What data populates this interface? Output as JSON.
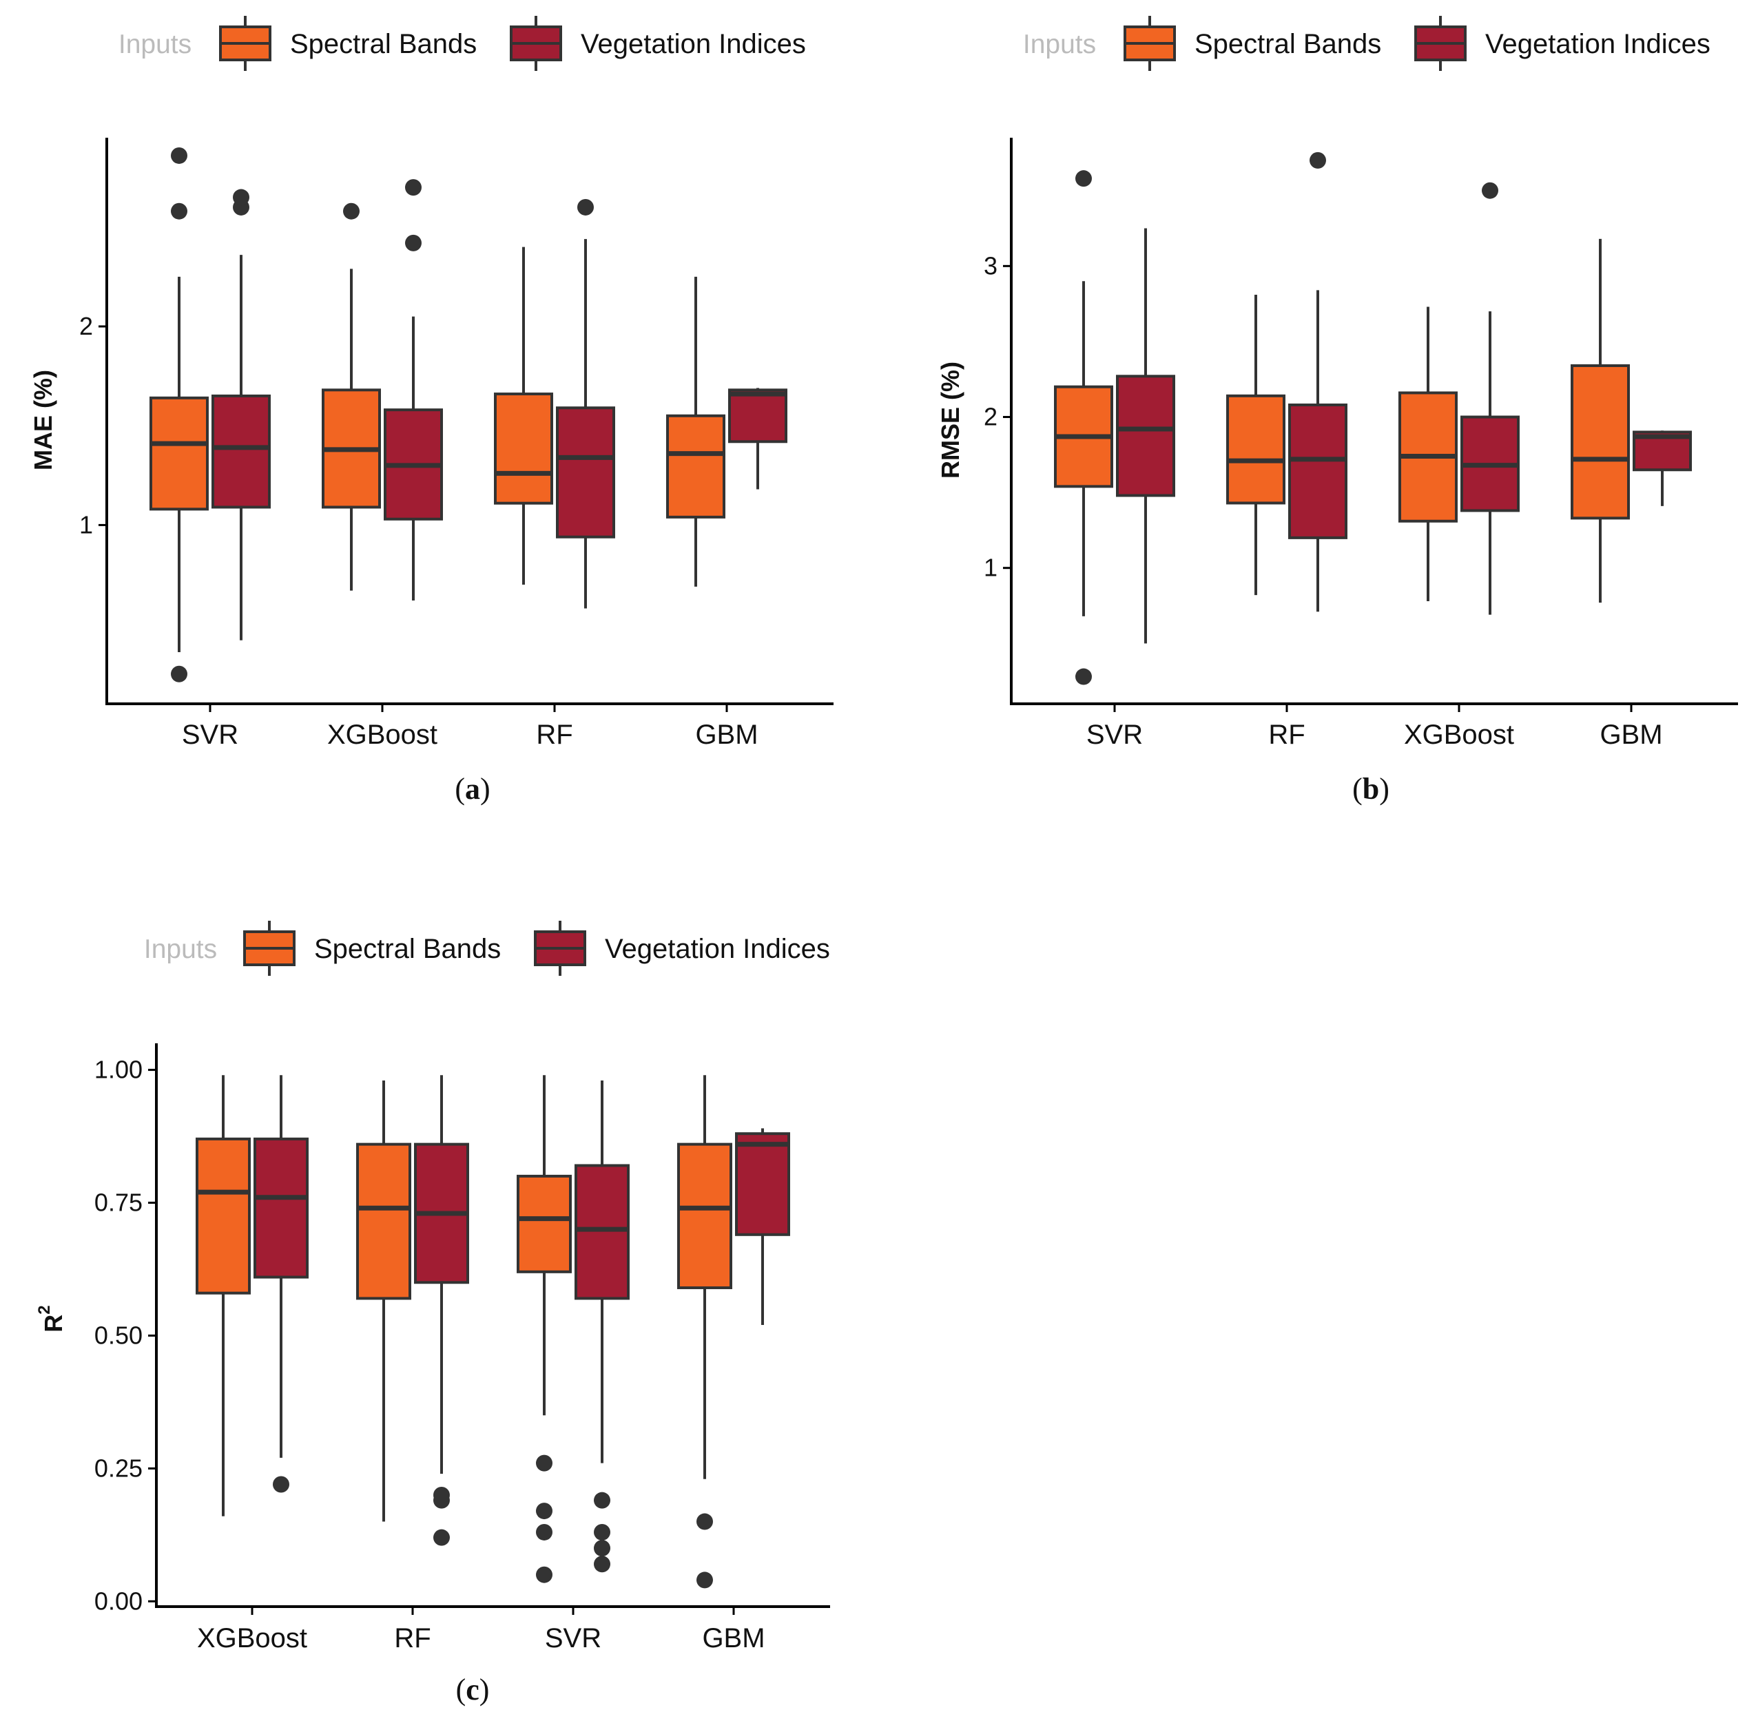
{
  "colors": {
    "spectral": "#F26522",
    "vegetation": "#A11D33",
    "outline": "#333333",
    "axis": "#000000",
    "legend_title": "#BBBBBB",
    "text": "#111111"
  },
  "chart_data": [
    {
      "type": "boxplot",
      "id": "a",
      "caption_label": "a",
      "ylabel": "MAE (%)",
      "ylim": [
        0.1,
        2.95
      ],
      "yticks": [
        1,
        2
      ],
      "ytick_labels": [
        "1",
        "2"
      ],
      "legend": {
        "title": "Inputs",
        "entries": [
          "Spectral Bands",
          "Vegetation Indices"
        ]
      },
      "categories": [
        "SVR",
        "XGBoost",
        "RF",
        "GBM"
      ],
      "series": [
        {
          "name": "Spectral Bands",
          "boxes": [
            {
              "min": 0.36,
              "q1": 1.08,
              "median": 1.41,
              "q3": 1.64,
              "max": 2.25,
              "outliers": [
                0.25,
                2.58,
                2.86
              ]
            },
            {
              "min": 0.67,
              "q1": 1.09,
              "median": 1.38,
              "q3": 1.68,
              "max": 2.29,
              "outliers": [
                2.58
              ]
            },
            {
              "min": 0.7,
              "q1": 1.11,
              "median": 1.26,
              "q3": 1.66,
              "max": 2.4,
              "outliers": []
            },
            {
              "min": 0.69,
              "q1": 1.04,
              "median": 1.36,
              "q3": 1.55,
              "max": 2.25,
              "outliers": []
            }
          ]
        },
        {
          "name": "Vegetation Indices",
          "boxes": [
            {
              "min": 0.42,
              "q1": 1.09,
              "median": 1.39,
              "q3": 1.65,
              "max": 2.36,
              "outliers": [
                2.6,
                2.65
              ]
            },
            {
              "min": 0.62,
              "q1": 1.03,
              "median": 1.3,
              "q3": 1.58,
              "max": 2.05,
              "outliers": [
                2.42,
                2.7
              ]
            },
            {
              "min": 0.58,
              "q1": 0.94,
              "median": 1.34,
              "q3": 1.59,
              "max": 2.44,
              "outliers": [
                2.6
              ]
            },
            {
              "min": 1.18,
              "q1": 1.42,
              "median": 1.66,
              "q3": 1.68,
              "max": 1.69,
              "outliers": []
            }
          ]
        }
      ]
    },
    {
      "type": "boxplot",
      "id": "b",
      "caption_label": "b",
      "ylabel": "RMSE (%)",
      "ylim": [
        0.1,
        3.85
      ],
      "yticks": [
        1,
        2,
        3
      ],
      "ytick_labels": [
        "1",
        "2",
        "3"
      ],
      "legend": {
        "title": "Inputs",
        "entries": [
          "Spectral Bands",
          "Vegetation Indices"
        ]
      },
      "categories": [
        "SVR",
        "RF",
        "XGBoost",
        "GBM"
      ],
      "series": [
        {
          "name": "Spectral Bands",
          "boxes": [
            {
              "min": 0.68,
              "q1": 1.54,
              "median": 1.87,
              "q3": 2.2,
              "max": 2.9,
              "outliers": [
                0.28,
                3.58
              ]
            },
            {
              "min": 0.82,
              "q1": 1.43,
              "median": 1.71,
              "q3": 2.14,
              "max": 2.81,
              "outliers": []
            },
            {
              "min": 0.78,
              "q1": 1.31,
              "median": 1.74,
              "q3": 2.16,
              "max": 2.73,
              "outliers": []
            },
            {
              "min": 0.77,
              "q1": 1.33,
              "median": 1.72,
              "q3": 2.34,
              "max": 3.18,
              "outliers": []
            }
          ]
        },
        {
          "name": "Vegetation Indices",
          "boxes": [
            {
              "min": 0.5,
              "q1": 1.48,
              "median": 1.92,
              "q3": 2.27,
              "max": 3.25,
              "outliers": []
            },
            {
              "min": 0.71,
              "q1": 1.2,
              "median": 1.72,
              "q3": 2.08,
              "max": 2.84,
              "outliers": [
                3.7
              ]
            },
            {
              "min": 0.69,
              "q1": 1.38,
              "median": 1.68,
              "q3": 2.0,
              "max": 2.7,
              "outliers": [
                3.5
              ]
            },
            {
              "min": 1.41,
              "q1": 1.65,
              "median": 1.87,
              "q3": 1.9,
              "max": 1.91,
              "outliers": []
            }
          ]
        }
      ]
    },
    {
      "type": "boxplot",
      "id": "c",
      "caption_label": "c",
      "ylabel": "R",
      "ylabel_superscript": "2",
      "ylim": [
        -0.01,
        1.05
      ],
      "yticks": [
        0.0,
        0.25,
        0.5,
        0.75,
        1.0
      ],
      "ytick_labels": [
        "0.00",
        "0.25",
        "0.50",
        "0.75",
        "1.00"
      ],
      "legend": {
        "title": "Inputs",
        "entries": [
          "Spectral Bands",
          "Vegetation Indices"
        ]
      },
      "categories": [
        "XGBoost",
        "RF",
        "SVR",
        "GBM"
      ],
      "series": [
        {
          "name": "Spectral Bands",
          "boxes": [
            {
              "min": 0.16,
              "q1": 0.58,
              "median": 0.77,
              "q3": 0.87,
              "max": 0.99,
              "outliers": []
            },
            {
              "min": 0.15,
              "q1": 0.57,
              "median": 0.74,
              "q3": 0.86,
              "max": 0.98,
              "outliers": []
            },
            {
              "min": 0.35,
              "q1": 0.62,
              "median": 0.72,
              "q3": 0.8,
              "max": 0.99,
              "outliers": [
                0.05,
                0.13,
                0.17,
                0.26
              ]
            },
            {
              "min": 0.23,
              "q1": 0.59,
              "median": 0.74,
              "q3": 0.86,
              "max": 0.99,
              "outliers": [
                0.04,
                0.15
              ]
            }
          ]
        },
        {
          "name": "Vegetation Indices",
          "boxes": [
            {
              "min": 0.27,
              "q1": 0.61,
              "median": 0.76,
              "q3": 0.87,
              "max": 0.99,
              "outliers": [
                0.22
              ]
            },
            {
              "min": 0.24,
              "q1": 0.6,
              "median": 0.73,
              "q3": 0.86,
              "max": 0.99,
              "outliers": [
                0.12,
                0.19,
                0.2
              ]
            },
            {
              "min": 0.26,
              "q1": 0.57,
              "median": 0.7,
              "q3": 0.82,
              "max": 0.98,
              "outliers": [
                0.07,
                0.1,
                0.13,
                0.19
              ]
            },
            {
              "min": 0.52,
              "q1": 0.69,
              "median": 0.86,
              "q3": 0.88,
              "max": 0.89,
              "outliers": []
            }
          ]
        }
      ]
    }
  ]
}
